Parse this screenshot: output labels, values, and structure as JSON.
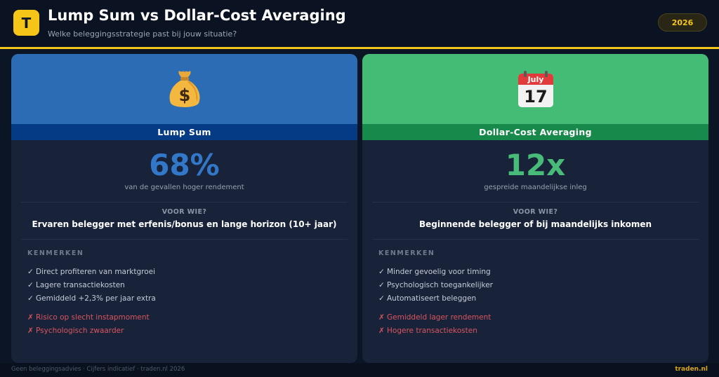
{
  "header": {
    "logo_letter": "T",
    "title": "Lump Sum vs Dollar-Cost Averaging",
    "subtitle": "Welke beleggingsstrategie past bij jouw situatie?",
    "year": "2026"
  },
  "cards": {
    "left": {
      "icon": "money-bag-icon",
      "accent": "#2c6cb4",
      "band_color": "#053a85",
      "name": "Lump Sum",
      "big_value": "68%",
      "big_caption": "van de gevallen hoger rendement",
      "who_label": "VOOR WIE?",
      "who_text": "Ervaren belegger met erfenis/bonus en lange horizon (10+ jaar)",
      "features_label": "KENMERKEN",
      "pros": [
        "Direct profiteren van marktgroei",
        "Lagere transactiekosten",
        "Gemiddeld +2,3% per jaar extra"
      ],
      "cons": [
        "Risico op slecht instapmoment",
        "Psychologisch zwaarder"
      ]
    },
    "right": {
      "icon": "calendar-icon",
      "calendar_month": "July",
      "calendar_day": "17",
      "accent": "#45bc76",
      "band_color": "#17894a",
      "name": "Dollar-Cost Averaging",
      "big_value": "12x",
      "big_caption": "gespreide maandelijkse inleg",
      "who_label": "VOOR WIE?",
      "who_text": "Beginnende belegger of bij maandelijks inkomen",
      "features_label": "KENMERKEN",
      "pros": [
        "Minder gevoelig voor timing",
        "Psychologisch toegankelijker",
        "Automatiseert beleggen"
      ],
      "cons": [
        "Gemiddeld lager rendement",
        "Hogere transactiekosten"
      ]
    }
  },
  "marks": {
    "check": "✓",
    "cross": "✗"
  },
  "footer": {
    "left": "Geen beleggingsadvies · Cijfers indicatief · traden.nl 2026",
    "right": "traden.nl"
  }
}
